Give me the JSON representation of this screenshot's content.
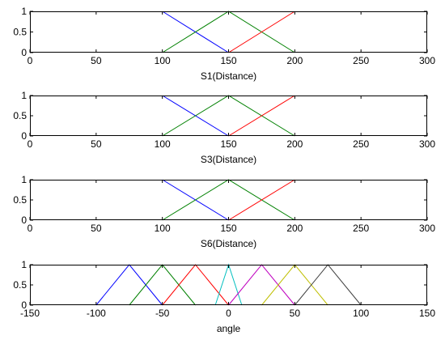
{
  "chart_data": [
    {
      "type": "line",
      "xlabel": "S1(Distance)",
      "xlim": [
        0,
        300
      ],
      "ylim": [
        0,
        1
      ],
      "xticks": [
        "0",
        "50",
        "100",
        "150",
        "200",
        "250",
        "300"
      ],
      "yticks": [
        "0",
        "0.5",
        "1"
      ],
      "series": [
        {
          "color": "#0000ff",
          "x": [
            100,
            150
          ],
          "y": [
            1,
            0
          ]
        },
        {
          "color": "#008000",
          "x": [
            100,
            150,
            200
          ],
          "y": [
            0,
            1,
            0
          ]
        },
        {
          "color": "#ff0000",
          "x": [
            150,
            200
          ],
          "y": [
            0,
            1
          ]
        }
      ]
    },
    {
      "type": "line",
      "xlabel": "S3(Distance)",
      "xlim": [
        0,
        300
      ],
      "ylim": [
        0,
        1
      ],
      "xticks": [
        "0",
        "50",
        "100",
        "150",
        "200",
        "250",
        "300"
      ],
      "yticks": [
        "0",
        "0.5",
        "1"
      ],
      "series": [
        {
          "color": "#0000ff",
          "x": [
            100,
            150
          ],
          "y": [
            1,
            0
          ]
        },
        {
          "color": "#008000",
          "x": [
            100,
            150,
            200
          ],
          "y": [
            0,
            1,
            0
          ]
        },
        {
          "color": "#ff0000",
          "x": [
            150,
            200
          ],
          "y": [
            0,
            1
          ]
        }
      ]
    },
    {
      "type": "line",
      "xlabel": "S6(Distance)",
      "xlim": [
        0,
        300
      ],
      "ylim": [
        0,
        1
      ],
      "xticks": [
        "0",
        "50",
        "100",
        "150",
        "200",
        "250",
        "300"
      ],
      "yticks": [
        "0",
        "0.5",
        "1"
      ],
      "series": [
        {
          "color": "#0000ff",
          "x": [
            100,
            150
          ],
          "y": [
            1,
            0
          ]
        },
        {
          "color": "#008000",
          "x": [
            100,
            150,
            200
          ],
          "y": [
            0,
            1,
            0
          ]
        },
        {
          "color": "#ff0000",
          "x": [
            150,
            200
          ],
          "y": [
            0,
            1
          ]
        }
      ]
    },
    {
      "type": "line",
      "xlabel": "angle",
      "xlim": [
        -150,
        150
      ],
      "ylim": [
        0,
        1
      ],
      "xticks": [
        "-150",
        "-100",
        "-50",
        "0",
        "50",
        "100",
        "150"
      ],
      "yticks": [
        "0",
        "0.5",
        "1"
      ],
      "series": [
        {
          "color": "#0000ff",
          "x": [
            -100,
            -75,
            -50
          ],
          "y": [
            0,
            1,
            0
          ]
        },
        {
          "color": "#008000",
          "x": [
            -75,
            -50,
            -25
          ],
          "y": [
            0,
            1,
            0
          ]
        },
        {
          "color": "#ff0000",
          "x": [
            -50,
            -25,
            0
          ],
          "y": [
            0,
            1,
            0
          ]
        },
        {
          "color": "#00bfbf",
          "x": [
            -10,
            0,
            10
          ],
          "y": [
            0,
            1,
            0
          ]
        },
        {
          "color": "#bf00bf",
          "x": [
            0,
            25,
            50
          ],
          "y": [
            0,
            1,
            0
          ]
        },
        {
          "color": "#bfbf00",
          "x": [
            25,
            50,
            75
          ],
          "y": [
            0,
            1,
            0
          ]
        },
        {
          "color": "#404040",
          "x": [
            50,
            75,
            100
          ],
          "y": [
            0,
            1,
            0
          ]
        }
      ]
    }
  ]
}
